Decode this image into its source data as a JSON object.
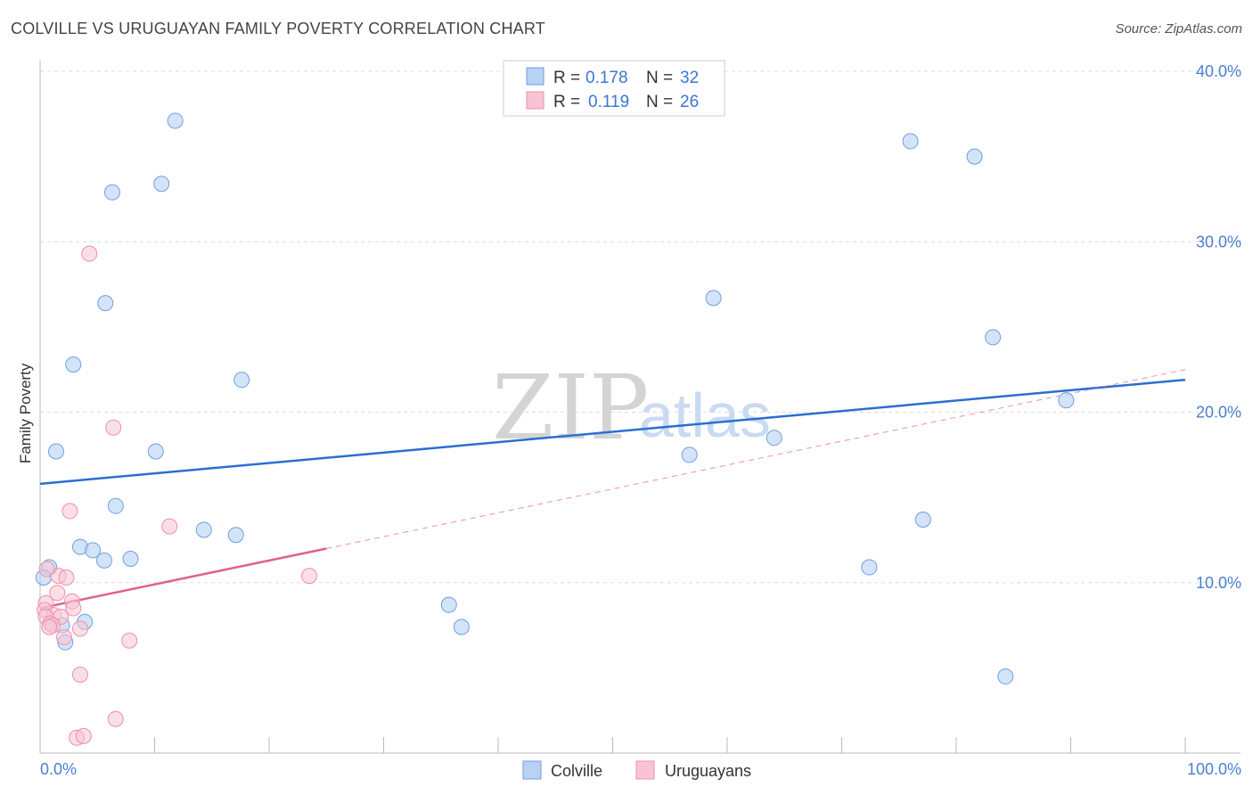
{
  "title": "COLVILLE VS URUGUAYAN FAMILY POVERTY CORRELATION CHART",
  "source": "Source: ZipAtlas.com",
  "watermark": {
    "zip": "ZIP",
    "atlas": "atlas"
  },
  "colors": {
    "colville_fill": "#b8d2f3",
    "colville_stroke": "#6e9fe0",
    "colville_line": "#2a6fd0",
    "uruguayan_fill": "#f8c4d4",
    "uruguayan_stroke": "#ee8fae",
    "uruguayan_line": "#e0608e",
    "tick_text": "#4a7fd0",
    "grid": "#dddddd"
  },
  "legend": {
    "r_label": "R =",
    "n_label": "N =",
    "colville": {
      "r": "0.178",
      "n": "32"
    },
    "uruguayan": {
      "r": "0.119",
      "n": "26"
    }
  },
  "bottom_legend": {
    "colville": "Colville",
    "uruguayan": "Uruguayans"
  },
  "chart_data": {
    "type": "scatter",
    "title": "COLVILLE VS URUGUAYAN FAMILY POVERTY CORRELATION CHART",
    "xlabel": "",
    "ylabel": "Family Poverty",
    "xlim": [
      0,
      100
    ],
    "ylim": [
      0,
      40
    ],
    "x_tick_labels": {
      "left": "0.0%",
      "right": "100.0%"
    },
    "y_ticks": [
      10,
      20,
      30,
      40
    ],
    "y_tick_labels": [
      "10.0%",
      "20.0%",
      "30.0%",
      "40.0%"
    ],
    "series": [
      {
        "name": "Colville",
        "points": [
          [
            11.8,
            37.1
          ],
          [
            10.6,
            33.4
          ],
          [
            6.3,
            32.9
          ],
          [
            5.7,
            26.4
          ],
          [
            2.9,
            22.8
          ],
          [
            17.6,
            21.9
          ],
          [
            1.4,
            17.7
          ],
          [
            10.1,
            17.7
          ],
          [
            6.6,
            14.5
          ],
          [
            14.3,
            13.1
          ],
          [
            17.1,
            12.8
          ],
          [
            3.5,
            12.1
          ],
          [
            4.6,
            11.9
          ],
          [
            5.6,
            11.3
          ],
          [
            7.9,
            11.4
          ],
          [
            0.8,
            10.9
          ],
          [
            0.3,
            10.3
          ],
          [
            3.9,
            7.7
          ],
          [
            1.9,
            7.5
          ],
          [
            2.2,
            6.5
          ],
          [
            58.8,
            26.7
          ],
          [
            56.7,
            17.5
          ],
          [
            64.1,
            18.5
          ],
          [
            89.6,
            20.7
          ],
          [
            83.2,
            24.4
          ],
          [
            77.1,
            13.7
          ],
          [
            76.0,
            35.9
          ],
          [
            81.6,
            35.0
          ],
          [
            72.4,
            10.9
          ],
          [
            36.8,
            7.4
          ],
          [
            35.7,
            8.7
          ],
          [
            84.3,
            4.5
          ]
        ],
        "trend": {
          "x": [
            0,
            100
          ],
          "y": [
            15.8,
            21.9
          ]
        }
      },
      {
        "name": "Uruguayans",
        "points": [
          [
            4.3,
            29.3
          ],
          [
            6.4,
            19.1
          ],
          [
            2.6,
            14.2
          ],
          [
            11.3,
            13.3
          ],
          [
            23.5,
            10.4
          ],
          [
            1.6,
            10.4
          ],
          [
            2.3,
            10.3
          ],
          [
            0.6,
            10.8
          ],
          [
            1.5,
            9.4
          ],
          [
            0.5,
            8.8
          ],
          [
            2.8,
            8.9
          ],
          [
            2.9,
            8.5
          ],
          [
            0.4,
            8.4
          ],
          [
            1.2,
            8.1
          ],
          [
            1.8,
            8.0
          ],
          [
            0.5,
            8.0
          ],
          [
            0.9,
            7.6
          ],
          [
            1.1,
            7.5
          ],
          [
            0.8,
            7.4
          ],
          [
            3.5,
            7.3
          ],
          [
            2.1,
            6.8
          ],
          [
            7.8,
            6.6
          ],
          [
            3.5,
            4.6
          ],
          [
            6.6,
            2.0
          ],
          [
            3.2,
            0.9
          ],
          [
            3.8,
            1.0
          ]
        ],
        "trend_solid": {
          "x": [
            0,
            25
          ],
          "y": [
            8.5,
            12.0
          ]
        },
        "trend_dashed": {
          "x": [
            25,
            100
          ],
          "y": [
            12.0,
            22.5
          ]
        }
      }
    ]
  }
}
